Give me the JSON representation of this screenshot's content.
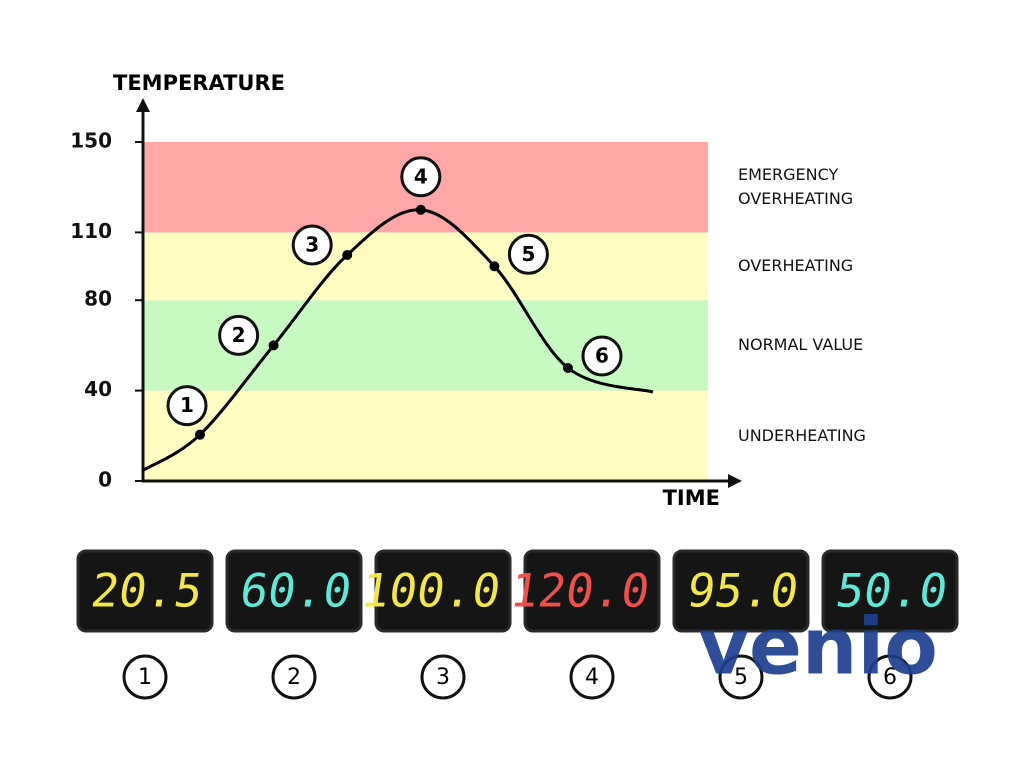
{
  "chart_data": {
    "type": "line",
    "y_label": "TEMPERATURE",
    "x_label": "TIME",
    "ylim": [
      0,
      150
    ],
    "yticks": [
      0,
      40,
      80,
      110,
      150
    ],
    "categories": [
      "1",
      "2",
      "3",
      "4",
      "5",
      "6"
    ],
    "values": [
      20.5,
      60,
      100,
      120,
      95,
      50
    ],
    "value_labels": [
      "20.5",
      "60.0",
      "100.0",
      "120.0",
      "95.0",
      "50.0"
    ],
    "display_colors": [
      "#f2e64a",
      "#5ee8d8",
      "#f2e64a",
      "#f0504a",
      "#f2e64a",
      "#5ee8d8"
    ],
    "line_color": "#000000",
    "bands": [
      {
        "from": 0,
        "to": 40,
        "label": "UNDERHEATING",
        "color": "#fffdc2"
      },
      {
        "from": 40,
        "to": 80,
        "label": "NORMAL VALUE",
        "color": "#c8f9c2"
      },
      {
        "from": 80,
        "to": 110,
        "label": "OVERHEATING",
        "color": "#fffdc2"
      },
      {
        "from": 110,
        "to": 150,
        "label": "EMERGENCY OVERHEATING",
        "color": "#ffa6a6"
      }
    ],
    "watermark": "venio"
  }
}
